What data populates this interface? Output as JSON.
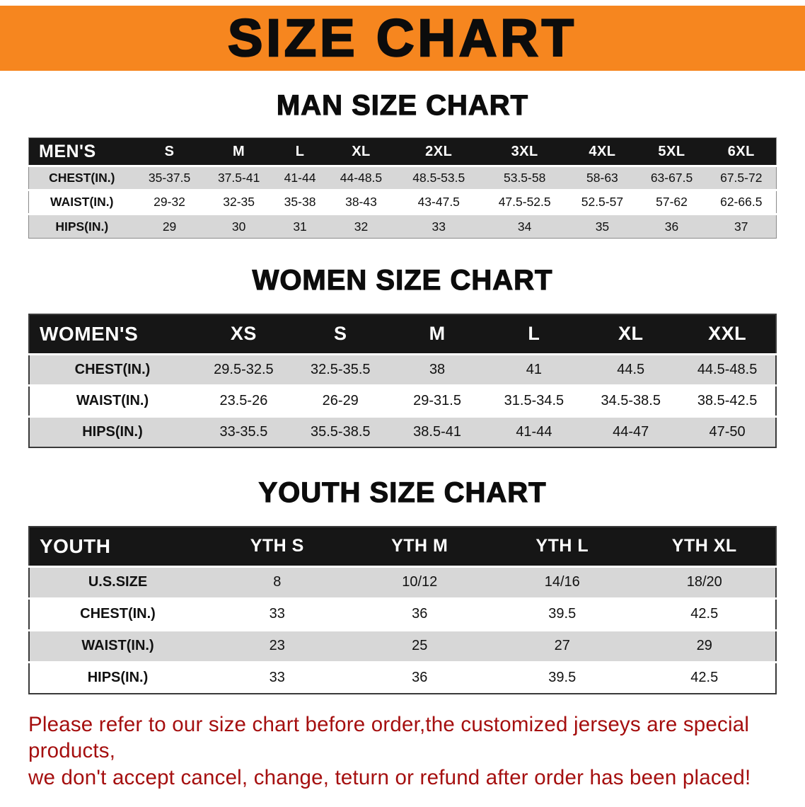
{
  "banner": {
    "title": "SIZE CHART"
  },
  "theme": {
    "banner_orange": "#f6861f",
    "table_header_black": "#161616",
    "row_stripe_gray": "#d7d7d7",
    "disclaimer_red": "#a50f0f"
  },
  "sections": [
    {
      "id": "men",
      "heading": "MAN SIZE CHART",
      "table": {
        "header": [
          "MEN'S",
          "S",
          "M",
          "L",
          "XL",
          "2XL",
          "3XL",
          "4XL",
          "5XL",
          "6XL"
        ],
        "rows": [
          {
            "label": "CHEST(IN.)",
            "values": [
              "35-37.5",
              "37.5-41",
              "41-44",
              "44-48.5",
              "48.5-53.5",
              "53.5-58",
              "58-63",
              "63-67.5",
              "67.5-72"
            ]
          },
          {
            "label": "WAIST(IN.)",
            "values": [
              "29-32",
              "32-35",
              "35-38",
              "38-43",
              "43-47.5",
              "47.5-52.5",
              "52.5-57",
              "57-62",
              "62-66.5"
            ]
          },
          {
            "label": "HIPS(IN.)",
            "values": [
              "29",
              "30",
              "31",
              "32",
              "33",
              "34",
              "35",
              "36",
              "37"
            ]
          }
        ]
      }
    },
    {
      "id": "women",
      "heading": "WOMEN SIZE CHART",
      "table": {
        "header": [
          "WOMEN'S",
          "XS",
          "S",
          "M",
          "L",
          "XL",
          "XXL"
        ],
        "rows": [
          {
            "label": "CHEST(IN.)",
            "values": [
              "29.5-32.5",
              "32.5-35.5",
              "38",
              "41",
              "44.5",
              "44.5-48.5"
            ]
          },
          {
            "label": "WAIST(IN.)",
            "values": [
              "23.5-26",
              "26-29",
              "29-31.5",
              "31.5-34.5",
              "34.5-38.5",
              "38.5-42.5"
            ]
          },
          {
            "label": "HIPS(IN.)",
            "values": [
              "33-35.5",
              "35.5-38.5",
              "38.5-41",
              "41-44",
              "44-47",
              "47-50"
            ]
          }
        ]
      }
    },
    {
      "id": "youth",
      "heading": "YOUTH SIZE CHART",
      "table": {
        "header": [
          "YOUTH",
          "YTH S",
          "YTH M",
          "YTH L",
          "YTH XL"
        ],
        "rows": [
          {
            "label": "U.S.SIZE",
            "values": [
              "8",
              "10/12",
              "14/16",
              "18/20"
            ]
          },
          {
            "label": "CHEST(IN.)",
            "values": [
              "33",
              "36",
              "39.5",
              "42.5"
            ]
          },
          {
            "label": "WAIST(IN.)",
            "values": [
              "23",
              "25",
              "27",
              "29"
            ]
          },
          {
            "label": "HIPS(IN.)",
            "values": [
              "33",
              "36",
              "39.5",
              "42.5"
            ]
          }
        ]
      }
    }
  ],
  "disclaimer": {
    "line1": "Please refer to our size chart before order,the customized jerseys are special products,",
    "line2": "we don't accept cancel, change, teturn or refund after order has been placed!"
  }
}
